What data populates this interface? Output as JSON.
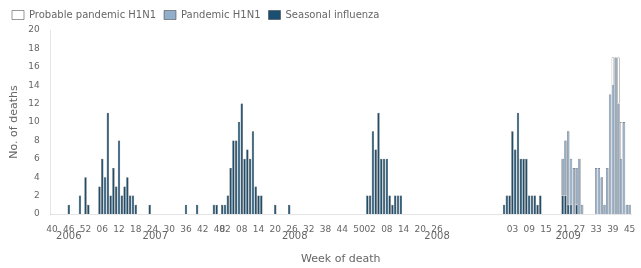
{
  "chart_data": {
    "type": "bar",
    "stacked": true,
    "xlabel": "Week of death",
    "ylabel": "No. of deaths",
    "ylim": [
      0,
      20
    ],
    "yticks": [
      0,
      2,
      4,
      6,
      8,
      10,
      12,
      14,
      16,
      18,
      20
    ],
    "grid": false,
    "legend": "upper left",
    "annotations": [
      {
        "text": "2006",
        "x": 6
      },
      {
        "text": "2007",
        "x": 37
      },
      {
        "text": "2008",
        "x": 87
      },
      {
        "text": "2008",
        "x": 138
      },
      {
        "text": "2009",
        "x": 185
      }
    ],
    "categories": [
      "40",
      null,
      null,
      null,
      null,
      null,
      "46",
      null,
      null,
      null,
      null,
      null,
      "52",
      null,
      null,
      null,
      null,
      null,
      "06",
      null,
      null,
      null,
      null,
      null,
      "12",
      null,
      null,
      null,
      null,
      null,
      "18",
      null,
      null,
      null,
      null,
      null,
      "24",
      null,
      null,
      null,
      null,
      null,
      "30",
      null,
      null,
      null,
      null,
      null,
      "36",
      null,
      null,
      null,
      null,
      null,
      "42",
      null,
      null,
      null,
      null,
      null,
      "48",
      null,
      "02",
      null,
      null,
      null,
      null,
      null,
      "08",
      null,
      null,
      null,
      null,
      null,
      "14",
      null,
      null,
      null,
      null,
      null,
      "20",
      null,
      null,
      null,
      null,
      null,
      "26",
      null,
      null,
      null,
      null,
      null,
      "32",
      null,
      null,
      null,
      null,
      null,
      "38",
      null,
      null,
      null,
      null,
      null,
      "44",
      null,
      null,
      null,
      null,
      null,
      "50",
      null,
      null,
      null,
      "02",
      null,
      null,
      null,
      null,
      null,
      "08",
      null,
      null,
      null,
      null,
      null,
      "14",
      null,
      null,
      null,
      null,
      null,
      "20",
      null,
      null,
      null,
      null,
      null,
      "26",
      null,
      null,
      null,
      null,
      null,
      null,
      null,
      null,
      null,
      null,
      null,
      null,
      null,
      null,
      null,
      null,
      null,
      null,
      null,
      null,
      null,
      null,
      null,
      null,
      null,
      null,
      "03",
      null,
      null,
      null,
      null,
      null,
      "09",
      null,
      null,
      null,
      null,
      null,
      "15",
      null,
      null,
      null,
      null,
      null,
      "21",
      null,
      null,
      null,
      null,
      null,
      "27",
      null,
      null,
      null,
      null,
      null,
      "33",
      null,
      null,
      null,
      null,
      null,
      "39",
      null,
      null,
      null,
      null,
      null,
      "45"
    ],
    "series": [
      {
        "name": "Seasonal influenza",
        "color": "#1B4F72",
        "values": [
          0,
          0,
          0,
          0,
          0,
          0,
          1,
          0,
          0,
          0,
          2,
          0,
          4,
          1,
          0,
          0,
          0,
          3,
          6,
          4,
          11,
          2,
          5,
          3,
          8,
          2,
          3,
          4,
          2,
          2,
          1,
          0,
          0,
          0,
          0,
          1,
          0,
          0,
          0,
          0,
          0,
          0,
          0,
          0,
          0,
          0,
          0,
          0,
          1,
          0,
          0,
          0,
          1,
          0,
          0,
          0,
          0,
          0,
          1,
          1,
          0,
          1,
          1,
          2,
          5,
          8,
          8,
          10,
          12,
          6,
          7,
          6,
          9,
          3,
          2,
          2,
          0,
          0,
          0,
          0,
          1,
          0,
          0,
          0,
          0,
          1,
          0,
          0,
          0,
          0,
          0,
          0,
          0,
          0,
          0,
          0,
          0,
          0,
          0,
          0,
          0,
          0,
          0,
          0,
          0,
          0,
          0,
          0,
          0,
          0,
          0,
          0,
          0,
          2,
          2,
          9,
          7,
          11,
          6,
          6,
          6,
          2,
          1,
          2,
          2,
          2,
          0,
          0,
          0,
          0,
          0,
          0,
          0,
          0,
          0,
          0,
          0,
          0,
          0,
          0,
          0,
          0,
          0,
          0,
          0,
          0,
          0,
          0,
          0,
          0,
          0,
          0,
          0,
          0,
          0,
          0,
          0,
          0,
          0,
          0,
          0,
          0,
          1,
          2,
          2,
          9,
          7,
          11,
          6,
          6,
          6,
          2,
          2,
          2,
          1,
          2,
          0,
          0,
          0,
          0,
          0,
          0,
          0,
          2,
          2,
          1,
          1,
          0,
          1,
          0,
          0,
          0,
          0,
          0,
          0,
          0,
          0,
          0,
          0,
          0,
          0,
          0,
          0,
          0,
          0,
          0,
          0,
          0
        ]
      },
      {
        "name": "Pandemic H1N1",
        "color": "#92AECB",
        "values": [
          0,
          0,
          0,
          0,
          0,
          0,
          0,
          0,
          0,
          0,
          0,
          0,
          0,
          0,
          0,
          0,
          0,
          0,
          0,
          0,
          0,
          0,
          0,
          0,
          0,
          0,
          0,
          0,
          0,
          0,
          0,
          0,
          0,
          0,
          0,
          0,
          0,
          0,
          0,
          0,
          0,
          0,
          0,
          0,
          0,
          0,
          0,
          0,
          0,
          0,
          0,
          0,
          0,
          0,
          0,
          0,
          0,
          0,
          0,
          0,
          0,
          0,
          0,
          0,
          0,
          0,
          0,
          0,
          0,
          0,
          0,
          0,
          0,
          0,
          0,
          0,
          0,
          0,
          0,
          0,
          0,
          0,
          0,
          0,
          0,
          0,
          0,
          0,
          0,
          0,
          0,
          0,
          0,
          0,
          0,
          0,
          0,
          0,
          0,
          0,
          0,
          0,
          0,
          0,
          0,
          0,
          0,
          0,
          0,
          0,
          0,
          0,
          0,
          0,
          0,
          0,
          0,
          0,
          0,
          0,
          0,
          0,
          0,
          0,
          0,
          0,
          0,
          0,
          0,
          0,
          0,
          0,
          0,
          0,
          0,
          0,
          0,
          0,
          0,
          0,
          0,
          0,
          0,
          0,
          0,
          0,
          0,
          0,
          0,
          0,
          0,
          0,
          0,
          0,
          0,
          0,
          0,
          0,
          0,
          0,
          0,
          0,
          0,
          0,
          0,
          0,
          0,
          0,
          0,
          0,
          0,
          0,
          0,
          0,
          0,
          0,
          0,
          0,
          0,
          0,
          0,
          0,
          0,
          4,
          6,
          8,
          5,
          5,
          4,
          6,
          1,
          0,
          0,
          0,
          0,
          5,
          5,
          4,
          1,
          5,
          13,
          14,
          17,
          12,
          6,
          10,
          1,
          1
        ]
      },
      {
        "name": "Probable pandemic H1N1",
        "color": "#FFFFFF",
        "values": [
          0,
          0,
          0,
          0,
          0,
          0,
          0,
          0,
          0,
          0,
          0,
          0,
          0,
          0,
          0,
          0,
          0,
          0,
          0,
          0,
          0,
          0,
          0,
          0,
          0,
          0,
          0,
          0,
          0,
          0,
          0,
          0,
          0,
          0,
          0,
          0,
          0,
          0,
          0,
          0,
          0,
          0,
          0,
          0,
          0,
          0,
          0,
          0,
          0,
          0,
          0,
          0,
          0,
          0,
          0,
          0,
          0,
          0,
          0,
          0,
          0,
          0,
          0,
          0,
          0,
          0,
          0,
          0,
          0,
          0,
          0,
          0,
          0,
          0,
          0,
          0,
          0,
          0,
          0,
          0,
          0,
          0,
          0,
          0,
          0,
          0,
          0,
          0,
          0,
          0,
          0,
          0,
          0,
          0,
          0,
          0,
          0,
          0,
          0,
          0,
          0,
          0,
          0,
          0,
          0,
          0,
          0,
          0,
          0,
          0,
          0,
          0,
          0,
          0,
          0,
          0,
          0,
          0,
          0,
          0,
          0,
          0,
          0,
          0,
          0,
          0,
          0,
          0,
          0,
          0,
          0,
          0,
          0,
          0,
          0,
          0,
          0,
          0,
          0,
          0,
          0,
          0,
          0,
          0,
          0,
          0,
          0,
          0,
          0,
          0,
          0,
          0,
          0,
          0,
          0,
          0,
          0,
          0,
          0,
          0,
          0,
          0,
          0,
          0,
          0,
          0,
          0,
          0,
          0,
          0,
          0,
          0,
          0,
          0,
          0,
          0,
          0,
          0,
          0,
          0,
          0,
          0,
          0,
          0,
          0,
          0,
          0,
          0,
          0,
          0,
          0,
          0,
          0,
          0,
          0,
          0,
          0,
          0,
          0,
          0,
          0,
          3,
          0,
          5,
          4,
          0,
          0,
          0
        ]
      }
    ]
  }
}
